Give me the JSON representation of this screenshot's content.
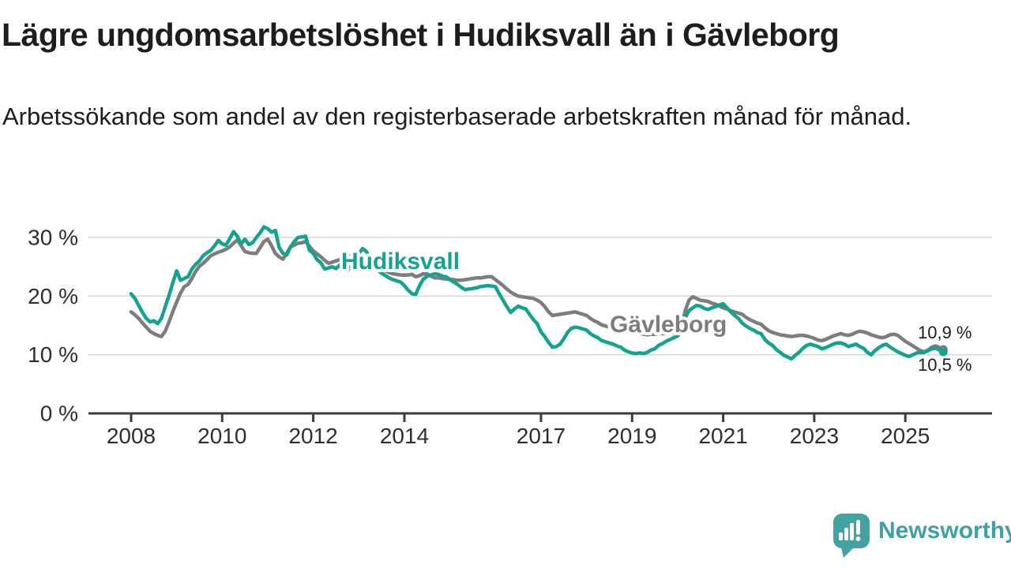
{
  "header": {
    "title": "Lägre ungdomsarbetslöshet i Hudiksvall än i Gävleborg",
    "subtitle": "Arbetssökande som andel av den registerbaserade arbetskraften månad för månad."
  },
  "chart_data": {
    "type": "line",
    "title": "",
    "xlabel": "",
    "ylabel": "",
    "x_unit": "year (monthly data)",
    "x_start_year": 2008,
    "x_step_years": 0.0833333,
    "ylim": [
      0,
      32.5
    ],
    "grid": "horizontal",
    "legend_position": "inline-labels",
    "x_axis": {
      "ticks": [
        2008,
        2010,
        2012,
        2014,
        2017,
        2019,
        2021,
        2023,
        2025
      ],
      "labels": [
        "2008",
        "2010",
        "2012",
        "2014",
        "2017",
        "2019",
        "2021",
        "2023",
        "2025"
      ]
    },
    "y_axis": {
      "ticks": [
        0,
        10,
        20,
        30
      ],
      "labels": [
        "0 %",
        "10 %",
        "20 %",
        "30 %"
      ]
    },
    "colors": {
      "hudiksvall": "#14a38f",
      "gavleborg": "#7d7d7d",
      "gridline": "#d8d8d8",
      "axis": "#3c3c3c",
      "axis_text": "#2e2e2e",
      "end_label_text": "#1d1d1d"
    },
    "series": [
      {
        "name": "Gävleborg",
        "color": "#7d7d7d",
        "end_label": "10,9 %",
        "values": [
          17.3,
          16.8,
          16.2,
          15.4,
          14.7,
          14.0,
          13.6,
          13.3,
          13.1,
          14.0,
          15.6,
          17.4,
          19.0,
          20.5,
          21.6,
          22.0,
          23.0,
          24.2,
          25.1,
          25.6,
          26.2,
          26.9,
          27.2,
          27.5,
          27.7,
          28.0,
          28.4,
          29.0,
          29.6,
          28.6,
          27.6,
          27.4,
          27.3,
          27.3,
          28.3,
          29.3,
          29.7,
          28.6,
          27.3,
          26.7,
          26.3,
          27.3,
          28.4,
          28.7,
          29.0,
          29.1,
          29.3,
          28.5,
          27.7,
          27.2,
          26.7,
          26.1,
          25.6,
          25.8,
          26.0,
          26.2,
          26.4,
          26.7,
          26.9,
          26.6,
          26.4,
          26.3,
          26.3,
          26.0,
          25.8,
          25.6,
          24.8,
          24.3,
          24.0,
          23.8,
          23.7,
          23.6,
          23.6,
          23.6,
          23.7,
          23.3,
          23.5,
          23.8,
          23.8,
          23.4,
          23.1,
          23.1,
          23.0,
          22.9,
          22.9,
          22.8,
          22.7,
          22.7,
          22.8,
          22.9,
          23.0,
          23.1,
          23.1,
          23.2,
          23.3,
          23.3,
          22.8,
          22.3,
          21.8,
          21.2,
          20.7,
          20.3,
          20.0,
          19.9,
          19.8,
          19.7,
          19.6,
          19.3,
          18.9,
          18.2,
          17.3,
          16.7,
          16.8,
          16.9,
          17.0,
          17.1,
          17.2,
          17.3,
          17.1,
          16.9,
          16.7,
          16.2,
          15.8,
          15.5,
          15.1,
          14.9,
          14.7,
          14.4,
          14.2,
          14.1,
          14.0,
          13.9,
          13.8,
          13.7,
          13.6,
          13.5,
          13.4,
          13.5,
          13.5,
          13.6,
          13.6,
          13.6,
          13.7,
          13.7,
          13.8,
          14.5,
          17.5,
          19.3,
          19.9,
          19.6,
          19.3,
          19.2,
          19.1,
          18.8,
          18.6,
          18.3,
          18.0,
          17.8,
          17.5,
          17.3,
          17.1,
          16.9,
          16.4,
          16.0,
          15.7,
          15.4,
          15.2,
          14.6,
          14.1,
          13.8,
          13.6,
          13.4,
          13.3,
          13.2,
          13.1,
          13.2,
          13.3,
          13.3,
          13.2,
          13.0,
          12.8,
          12.5,
          12.4,
          12.6,
          12.9,
          13.2,
          13.4,
          13.6,
          13.4,
          13.3,
          13.5,
          13.8,
          14.0,
          13.9,
          13.7,
          13.4,
          13.2,
          13.0,
          12.9,
          13.1,
          13.4,
          13.5,
          13.3,
          12.8,
          12.3,
          11.9,
          11.5,
          11.1,
          10.7,
          10.5,
          10.8,
          11.3,
          11.5,
          11.2,
          10.9
        ]
      },
      {
        "name": "Hudiksvall",
        "color": "#14a38f",
        "end_label": "10,5 %",
        "values": [
          20.4,
          19.6,
          18.4,
          17.2,
          16.2,
          15.6,
          15.8,
          15.3,
          16.2,
          18.2,
          20.1,
          22.3,
          24.3,
          22.7,
          23.0,
          23.3,
          24.6,
          25.4,
          26.0,
          26.9,
          27.4,
          27.8,
          28.6,
          29.5,
          28.9,
          28.7,
          29.8,
          31.0,
          30.2,
          28.9,
          29.7,
          28.8,
          29.1,
          30.0,
          30.8,
          31.8,
          31.5,
          30.9,
          31.2,
          28.3,
          27.3,
          27.0,
          28.4,
          29.3,
          30.0,
          30.1,
          30.2,
          27.8,
          27.3,
          26.2,
          25.7,
          24.6,
          24.8,
          25.0,
          24.7,
          25.3,
          24.9,
          24.4,
          25.2,
          26.4,
          27.3,
          28.1,
          27.6,
          26.2,
          25.1,
          24.4,
          23.9,
          23.5,
          23.1,
          22.8,
          22.6,
          22.4,
          21.8,
          21.0,
          20.4,
          20.3,
          21.8,
          22.9,
          23.4,
          23.6,
          23.8,
          23.7,
          23.4,
          23.3,
          22.8,
          22.4,
          22.0,
          21.5,
          21.1,
          21.2,
          21.3,
          21.4,
          21.6,
          21.7,
          21.8,
          21.7,
          21.6,
          20.4,
          19.3,
          18.2,
          17.2,
          17.8,
          18.3,
          18.0,
          17.8,
          16.9,
          16.0,
          15.3,
          13.9,
          13.1,
          12.1,
          11.3,
          11.4,
          11.8,
          12.7,
          13.8,
          14.5,
          14.7,
          14.6,
          14.4,
          14.2,
          13.6,
          13.2,
          12.9,
          12.4,
          12.2,
          12.0,
          11.8,
          11.5,
          11.3,
          10.8,
          10.5,
          10.3,
          10.2,
          10.3,
          10.2,
          10.4,
          10.8,
          11.0,
          11.6,
          11.9,
          12.3,
          12.6,
          12.9,
          13.2,
          14.0,
          16.3,
          17.5,
          18.0,
          18.4,
          18.3,
          17.9,
          17.7,
          18.0,
          18.2,
          18.5,
          18.7,
          18.0,
          17.3,
          16.7,
          16.2,
          15.4,
          14.9,
          14.5,
          14.2,
          13.8,
          13.6,
          12.6,
          12.0,
          11.6,
          10.9,
          10.4,
          9.9,
          9.6,
          9.3,
          9.9,
          10.4,
          11.1,
          11.6,
          11.8,
          11.6,
          11.4,
          11.0,
          11.2,
          11.5,
          11.8,
          12.0,
          12.0,
          11.8,
          11.4,
          11.6,
          11.8,
          11.4,
          11.1,
          10.4,
          10.0,
          10.7,
          11.2,
          11.6,
          11.8,
          11.3,
          10.9,
          10.5,
          10.2,
          9.9,
          9.7,
          10.0,
          10.3,
          10.4,
          10.4,
          10.7,
          11.0,
          11.1,
          10.8,
          10.5
        ]
      }
    ]
  },
  "branding": {
    "logo_text": "Newsworthy",
    "logo_color": "#3fa2a2",
    "logo_icon": "speech-bubble-bar-chart-icon"
  }
}
